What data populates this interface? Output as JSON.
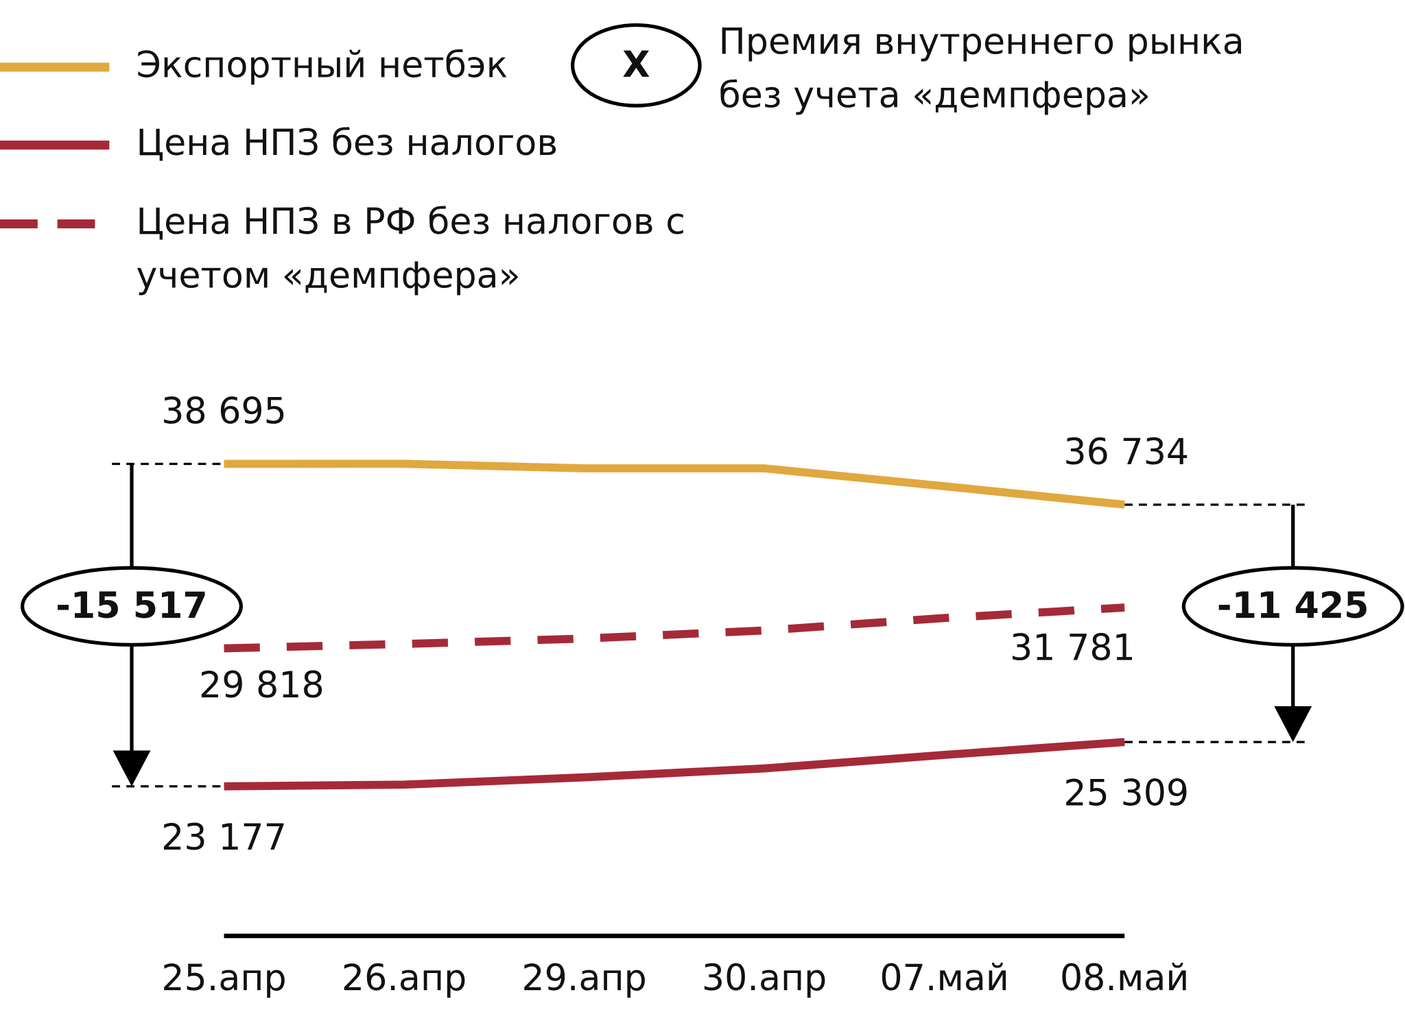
{
  "chart_data": {
    "type": "line",
    "categories": [
      "25.апр",
      "26.апр",
      "29.апр",
      "30.апр",
      "07.май",
      "08.май"
    ],
    "series": [
      {
        "name": "Экспортный нетбэк",
        "color": "#e0a83e",
        "dashed": false,
        "values": [
          38695,
          38700,
          38480,
          38480,
          37620,
          36734
        ],
        "value_labels": [
          "38 695",
          null,
          null,
          null,
          null,
          "36 734"
        ]
      },
      {
        "name": "Цена НПЗ без налогов",
        "color": "#a52a38",
        "dashed": false,
        "values": [
          23177,
          23260,
          23610,
          24040,
          24690,
          25309
        ],
        "value_labels": [
          "23 177",
          null,
          null,
          null,
          null,
          "25 309"
        ]
      },
      {
        "name": "Цена НПЗ в РФ без налогов с учетом «демпфера»",
        "color": "#a52a38",
        "dashed": true,
        "values": [
          29818,
          30030,
          30290,
          30680,
          31280,
          31781
        ],
        "value_labels": [
          "29 818",
          null,
          null,
          null,
          null,
          "31 781"
        ]
      }
    ],
    "ylim": [
      20000,
      40000
    ],
    "legend_note": {
      "symbol": "X",
      "text": "Премия внутреннего рынка без учета «демпфера»"
    },
    "annotations": [
      {
        "label": "-15 517",
        "value": -15517
      },
      {
        "label": "-11 425",
        "value": -11425
      }
    ]
  }
}
